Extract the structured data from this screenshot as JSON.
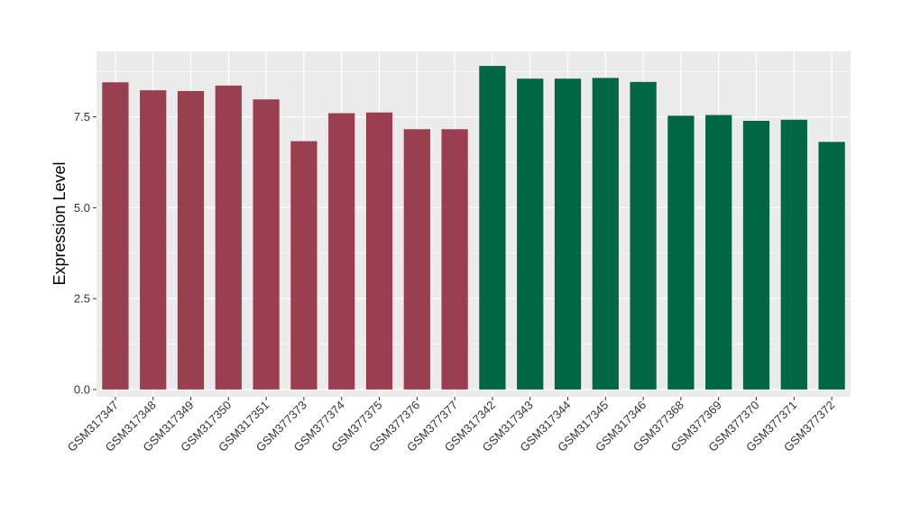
{
  "chart_data": {
    "type": "bar",
    "title": "",
    "xlabel": "",
    "ylabel": "Expression Level",
    "ylim": [
      -0.2,
      9.3
    ],
    "yticks": [
      0,
      2.5,
      5,
      7.5
    ],
    "ytick_labels": [
      "0.0",
      "2.5",
      "5.0",
      "7.5"
    ],
    "categories": [
      "GSM317347",
      "GSM317348",
      "GSM317349",
      "GSM317350",
      "GSM317351",
      "GSM377373",
      "GSM377374",
      "GSM377375",
      "GSM377376",
      "GSM377377",
      "GSM317342",
      "GSM317343",
      "GSM317344",
      "GSM317345",
      "GSM317346",
      "GSM377368",
      "GSM377369",
      "GSM377370",
      "GSM377371",
      "GSM377372"
    ],
    "values": [
      8.45,
      8.23,
      8.21,
      8.36,
      7.98,
      6.83,
      7.6,
      7.62,
      7.16,
      7.16,
      8.9,
      8.55,
      8.55,
      8.57,
      8.46,
      7.53,
      7.55,
      7.39,
      7.42,
      6.81
    ],
    "bar_colors": [
      "#9a3f50",
      "#9a3f50",
      "#9a3f50",
      "#9a3f50",
      "#9a3f50",
      "#9a3f50",
      "#9a3f50",
      "#9a3f50",
      "#9a3f50",
      "#9a3f50",
      "#006644",
      "#006644",
      "#006644",
      "#006644",
      "#006644",
      "#006644",
      "#006644",
      "#006644",
      "#006644",
      "#006644"
    ],
    "grid": true,
    "legend": "none",
    "panel_color": "#ebebeb"
  }
}
